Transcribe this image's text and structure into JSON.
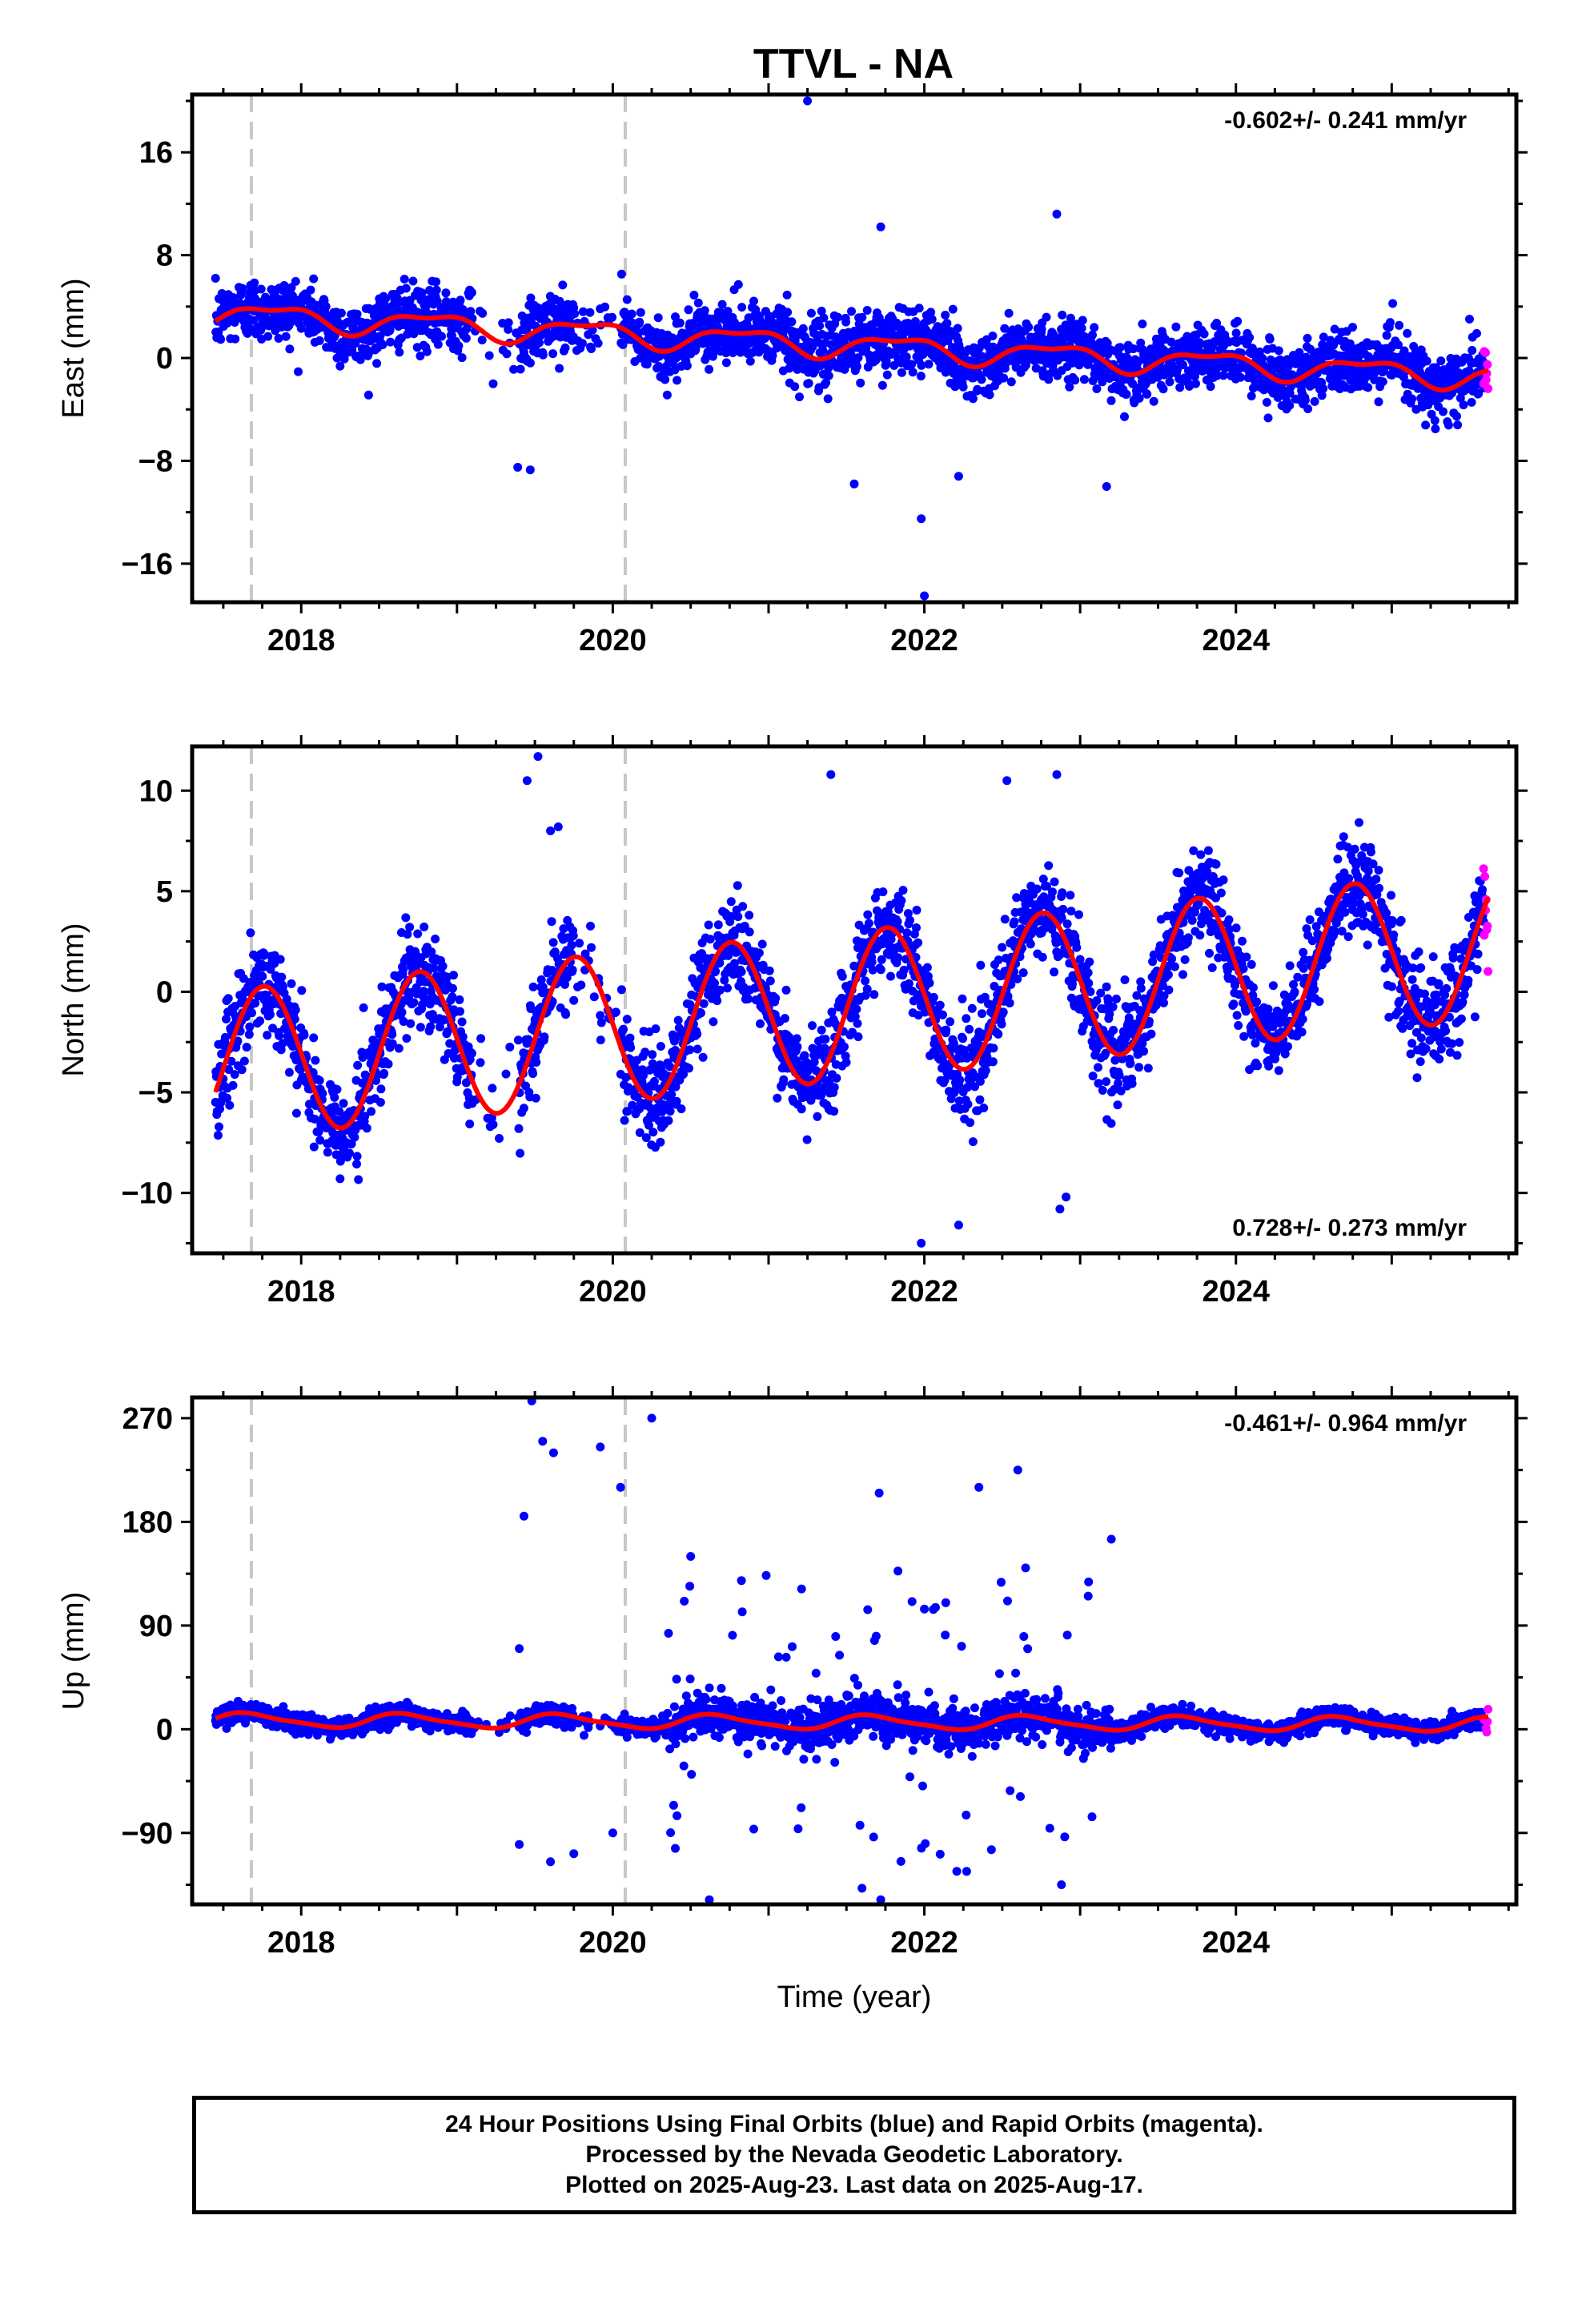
{
  "title": "TTVL - NA",
  "caption": [
    "24 Hour Positions Using Final Orbits (blue) and Rapid Orbits (magenta).",
    "Processed by the Nevada Geodetic Laboratory.",
    "Plotted on 2025-Aug-23. Last data on 2025-Aug-17."
  ],
  "colors": {
    "final": "#0000ff",
    "rapid": "#ff00ff",
    "model": "#ff0000",
    "event": "#c8c8c8"
  },
  "chart_data": [
    {
      "type": "scatter",
      "ylabel": "East (mm)",
      "xlabel": "",
      "rate": "-0.602+/- 0.241 mm/yr",
      "rate_position": "top-right",
      "xlim": [
        2017.3,
        2025.8
      ],
      "ylim": [
        -19.0,
        20.5
      ],
      "xticks": [
        2018,
        2020,
        2022,
        2024
      ],
      "yticks": [
        16,
        8,
        0,
        -8,
        -16
      ],
      "yticklabels": [
        "16",
        "8",
        "0",
        "−8",
        "−16"
      ],
      "event_lines": [
        2017.68,
        2020.08
      ],
      "model": {
        "offset": 1.0,
        "slope": -0.6,
        "ann_cos": 0.4,
        "ann_sin": -0.75,
        "semi_cos": 0.25,
        "semi_sin": 0.25,
        "spread": 1.2
      },
      "outliers": [
        [
          2021.25,
          20.0
        ],
        [
          2021.72,
          10.2
        ],
        [
          2022.85,
          11.2
        ],
        [
          2019.39,
          -8.5
        ],
        [
          2019.47,
          -8.7
        ],
        [
          2021.98,
          -12.5
        ],
        [
          2022.0,
          -18.5
        ],
        [
          2023.17,
          -10.0
        ],
        [
          2022.22,
          -9.2
        ],
        [
          2021.55,
          -9.8
        ]
      ]
    },
    {
      "type": "scatter",
      "ylabel": "North (mm)",
      "xlabel": "",
      "rate": "0.728+/- 0.273 mm/yr",
      "rate_position": "bottom-right",
      "xlim": [
        2017.3,
        2025.8
      ],
      "ylim": [
        -13.0,
        12.2
      ],
      "xticks": [
        2018,
        2020,
        2022,
        2024
      ],
      "yticks": [
        10,
        5,
        0,
        -5,
        -10
      ],
      "yticklabels": [
        "10",
        "5",
        "0",
        "−5",
        "−10"
      ],
      "event_lines": [
        2017.68,
        2020.08
      ],
      "model": {
        "offset": -0.7,
        "slope": 0.73,
        "ann_cos": 0.2,
        "ann_sin": -3.7,
        "semi_cos": 0.0,
        "semi_sin": 0.0,
        "spread": 1.2
      },
      "outliers": [
        [
          2019.45,
          10.5
        ],
        [
          2019.52,
          11.7
        ],
        [
          2019.6,
          8.0
        ],
        [
          2019.65,
          8.2
        ],
        [
          2022.85,
          10.8
        ],
        [
          2021.4,
          10.8
        ],
        [
          2022.53,
          10.5
        ],
        [
          2022.91,
          -10.2
        ],
        [
          2022.87,
          -10.8
        ],
        [
          2021.98,
          -12.5
        ],
        [
          2022.22,
          -11.6
        ],
        [
          2018.2,
          -7.4
        ]
      ]
    },
    {
      "type": "scatter",
      "ylabel": "Up (mm)",
      "xlabel": "Time (year)",
      "rate": "-0.461+/- 0.964 mm/yr",
      "rate_position": "top-right",
      "xlim": [
        2017.3,
        2025.8
      ],
      "ylim": [
        -152,
        288
      ],
      "xticks": [
        2018,
        2020,
        2022,
        2024
      ],
      "yticks": [
        270,
        180,
        90,
        0,
        -90
      ],
      "yticklabels": [
        "270",
        "180",
        "90",
        "0",
        "−90"
      ],
      "event_lines": [
        2017.68,
        2020.08
      ],
      "model": {
        "offset": 6.0,
        "slope": -0.46,
        "ann_cos": -3.0,
        "ann_sin": -5.0,
        "semi_cos": 1.0,
        "semi_sin": 1.0,
        "spread": 4.0
      },
      "outliers": [
        [
          2019.48,
          285
        ],
        [
          2019.55,
          250
        ],
        [
          2019.62,
          240
        ],
        [
          2019.92,
          245
        ],
        [
          2020.25,
          270
        ],
        [
          2020.05,
          210
        ],
        [
          2022.35,
          210
        ],
        [
          2022.6,
          225
        ],
        [
          2023.2,
          165
        ],
        [
          2021.71,
          205
        ],
        [
          2022.88,
          -135
        ],
        [
          2021.6,
          -138
        ],
        [
          2021.72,
          -148
        ],
        [
          2020.62,
          -148
        ],
        [
          2019.43,
          185
        ],
        [
          2019.4,
          70
        ],
        [
          2019.6,
          -115
        ],
        [
          2019.75,
          -108
        ],
        [
          2019.4,
          -100
        ],
        [
          2020.0,
          -90
        ],
        [
          2022.65,
          140
        ],
        [
          2020.5,
          150
        ]
      ]
    }
  ]
}
